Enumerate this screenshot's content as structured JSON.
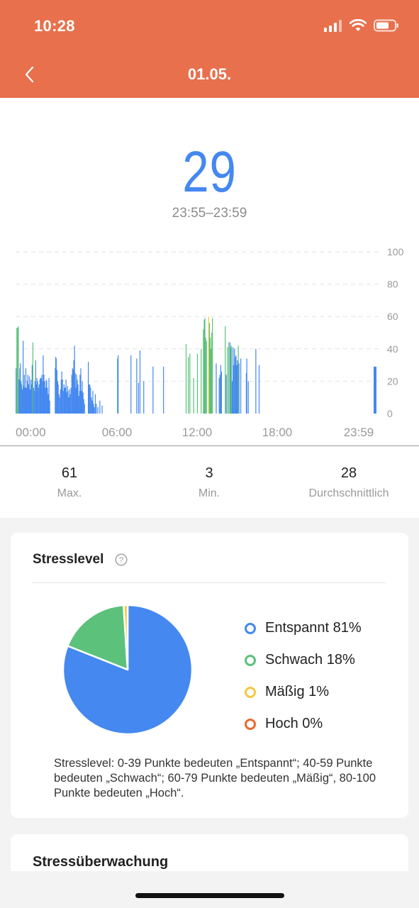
{
  "status_bar": {
    "time": "10:28"
  },
  "header": {
    "title": "01.05."
  },
  "summary": {
    "value": "29",
    "time_range": "23:55–23:59"
  },
  "stats": [
    {
      "value": "61",
      "label": "Max."
    },
    {
      "value": "3",
      "label": "Min."
    },
    {
      "value": "28",
      "label": "Durchschnittlich"
    }
  ],
  "stress_card": {
    "title": "Stresslevel",
    "note": "Stresslevel: 0-39 Punkte bedeuten „Entspannt“; 40-59 Punkte bedeuten „Schwach“; 60-79 Punkte bedeuten „Mäßig“, 80-100 Punkte bedeuten „Hoch“."
  },
  "legend": [
    {
      "label": "Entspannt 81%",
      "color": "#4488f0"
    },
    {
      "label": "Schwach 18%",
      "color": "#5cc17b"
    },
    {
      "label": "Mäßig 1%",
      "color": "#f5c842"
    },
    {
      "label": "Hoch 0%",
      "color": "#e8692f"
    }
  ],
  "monitor_card": {
    "title": "Stressüberwachung"
  },
  "colors": {
    "header": "#e8704c",
    "relaxed": "#4488f0",
    "weak": "#5cc17b",
    "moderate": "#f5c842",
    "high": "#e8692f"
  },
  "chart_data": [
    {
      "type": "bar",
      "title": "",
      "xlabel": "",
      "ylabel": "",
      "ylim": [
        0,
        100
      ],
      "y_ticks": [
        0,
        20,
        40,
        60,
        80,
        100
      ],
      "x_ticks": [
        "00:00",
        "06:00",
        "12:00",
        "18:00",
        "23:59"
      ],
      "x_range_minutes": [
        0,
        1439
      ],
      "grid": true,
      "series_colors": {
        "relaxed": "#4488f0",
        "weak": "#5cc17b",
        "moderate": "#f5c842"
      },
      "bars": [
        [
          2,
          28
        ],
        [
          5,
          53
        ],
        [
          8,
          53
        ],
        [
          11,
          54
        ],
        [
          14,
          21
        ],
        [
          17,
          28
        ],
        [
          19,
          31
        ],
        [
          22,
          20
        ],
        [
          24,
          18
        ],
        [
          27,
          15
        ],
        [
          30,
          45
        ],
        [
          33,
          17
        ],
        [
          35,
          24
        ],
        [
          38,
          16
        ],
        [
          41,
          28
        ],
        [
          44,
          16
        ],
        [
          47,
          20
        ],
        [
          49,
          24
        ],
        [
          52,
          18
        ],
        [
          55,
          23
        ],
        [
          58,
          15
        ],
        [
          61,
          21
        ],
        [
          63,
          18
        ],
        [
          66,
          30
        ],
        [
          69,
          44
        ],
        [
          72,
          16
        ],
        [
          74,
          14
        ],
        [
          77,
          20
        ],
        [
          80,
          33
        ],
        [
          83,
          18
        ],
        [
          85,
          22
        ],
        [
          88,
          20
        ],
        [
          91,
          16
        ],
        [
          94,
          18
        ],
        [
          97,
          21
        ],
        [
          99,
          22
        ],
        [
          102,
          22
        ],
        [
          105,
          24
        ],
        [
          108,
          20
        ],
        [
          110,
          36
        ],
        [
          113,
          24
        ],
        [
          116,
          20
        ],
        [
          119,
          16
        ],
        [
          122,
          21
        ],
        [
          124,
          20
        ],
        [
          127,
          16
        ],
        [
          130,
          12
        ],
        [
          133,
          22
        ],
        [
          136,
          8
        ],
        [
          158,
          28
        ],
        [
          160,
          35
        ],
        [
          162,
          34
        ],
        [
          165,
          27
        ],
        [
          168,
          20
        ],
        [
          170,
          18
        ],
        [
          173,
          12
        ],
        [
          176,
          10
        ],
        [
          179,
          15
        ],
        [
          182,
          21
        ],
        [
          184,
          26
        ],
        [
          187,
          21
        ],
        [
          190,
          14
        ],
        [
          193,
          18
        ],
        [
          195,
          16
        ],
        [
          198,
          16
        ],
        [
          201,
          21
        ],
        [
          204,
          13
        ],
        [
          207,
          17
        ],
        [
          209,
          14
        ],
        [
          212,
          10
        ],
        [
          215,
          15
        ],
        [
          218,
          12
        ],
        [
          221,
          16
        ],
        [
          224,
          24
        ],
        [
          227,
          28
        ],
        [
          229,
          27
        ],
        [
          232,
          33
        ],
        [
          235,
          42
        ],
        [
          238,
          25
        ],
        [
          240,
          16
        ],
        [
          243,
          24
        ],
        [
          246,
          21
        ],
        [
          249,
          18
        ],
        [
          252,
          11
        ],
        [
          255,
          14
        ],
        [
          257,
          24
        ],
        [
          260,
          28
        ],
        [
          263,
          14
        ],
        [
          266,
          20
        ],
        [
          269,
          13
        ],
        [
          272,
          9
        ],
        [
          275,
          6
        ],
        [
          290,
          32
        ],
        [
          293,
          18
        ],
        [
          296,
          18
        ],
        [
          299,
          16
        ],
        [
          302,
          10
        ],
        [
          305,
          8
        ],
        [
          308,
          14
        ],
        [
          311,
          6
        ],
        [
          314,
          4
        ],
        [
          318,
          12
        ],
        [
          322,
          6
        ],
        [
          328,
          4
        ],
        [
          336,
          8
        ],
        [
          345,
          5
        ],
        [
          406,
          34
        ],
        [
          409,
          36
        ],
        [
          460,
          36
        ],
        [
          483,
          34
        ],
        [
          490,
          19
        ],
        [
          496,
          39
        ],
        [
          511,
          20
        ],
        [
          548,
          29
        ],
        [
          590,
          29
        ],
        [
          680,
          43
        ],
        [
          689,
          35
        ],
        [
          695,
          37
        ],
        [
          710,
          22
        ],
        [
          725,
          37
        ],
        [
          740,
          40
        ],
        [
          749,
          52
        ],
        [
          752,
          58
        ],
        [
          755,
          59
        ],
        [
          758,
          47
        ],
        [
          761,
          45
        ],
        [
          770,
          60
        ],
        [
          773,
          56
        ],
        [
          776,
          47
        ],
        [
          779,
          40
        ],
        [
          782,
          50
        ],
        [
          785,
          59
        ],
        [
          800,
          31
        ],
        [
          812,
          22
        ],
        [
          815,
          24
        ],
        [
          818,
          30
        ],
        [
          821,
          26
        ],
        [
          836,
          54
        ],
        [
          840,
          24
        ],
        [
          845,
          41
        ],
        [
          850,
          44
        ],
        [
          855,
          44
        ],
        [
          858,
          41
        ],
        [
          861,
          42
        ],
        [
          864,
          20
        ],
        [
          867,
          41
        ],
        [
          870,
          30
        ],
        [
          873,
          40
        ],
        [
          876,
          35
        ],
        [
          879,
          36
        ],
        [
          882,
          30
        ],
        [
          885,
          33
        ],
        [
          888,
          42
        ],
        [
          891,
          31
        ],
        [
          898,
          34
        ],
        [
          920,
          25
        ],
        [
          922,
          34
        ],
        [
          928,
          20
        ],
        [
          958,
          40
        ],
        [
          971,
          30
        ]
      ],
      "weak_minutes": [
        5,
        8,
        11,
        69,
        406,
        680,
        689,
        695,
        710,
        725,
        740,
        749,
        752,
        755,
        758,
        761,
        770,
        773,
        776,
        779,
        782,
        785,
        836,
        845,
        850,
        858,
        861,
        888
      ],
      "moderate_minutes": [
        770
      ]
    },
    {
      "type": "pie",
      "title": "Stresslevel",
      "categories": [
        "Entspannt",
        "Schwach",
        "Mäßig",
        "Hoch"
      ],
      "values": [
        81,
        18,
        1,
        0
      ]
    }
  ]
}
